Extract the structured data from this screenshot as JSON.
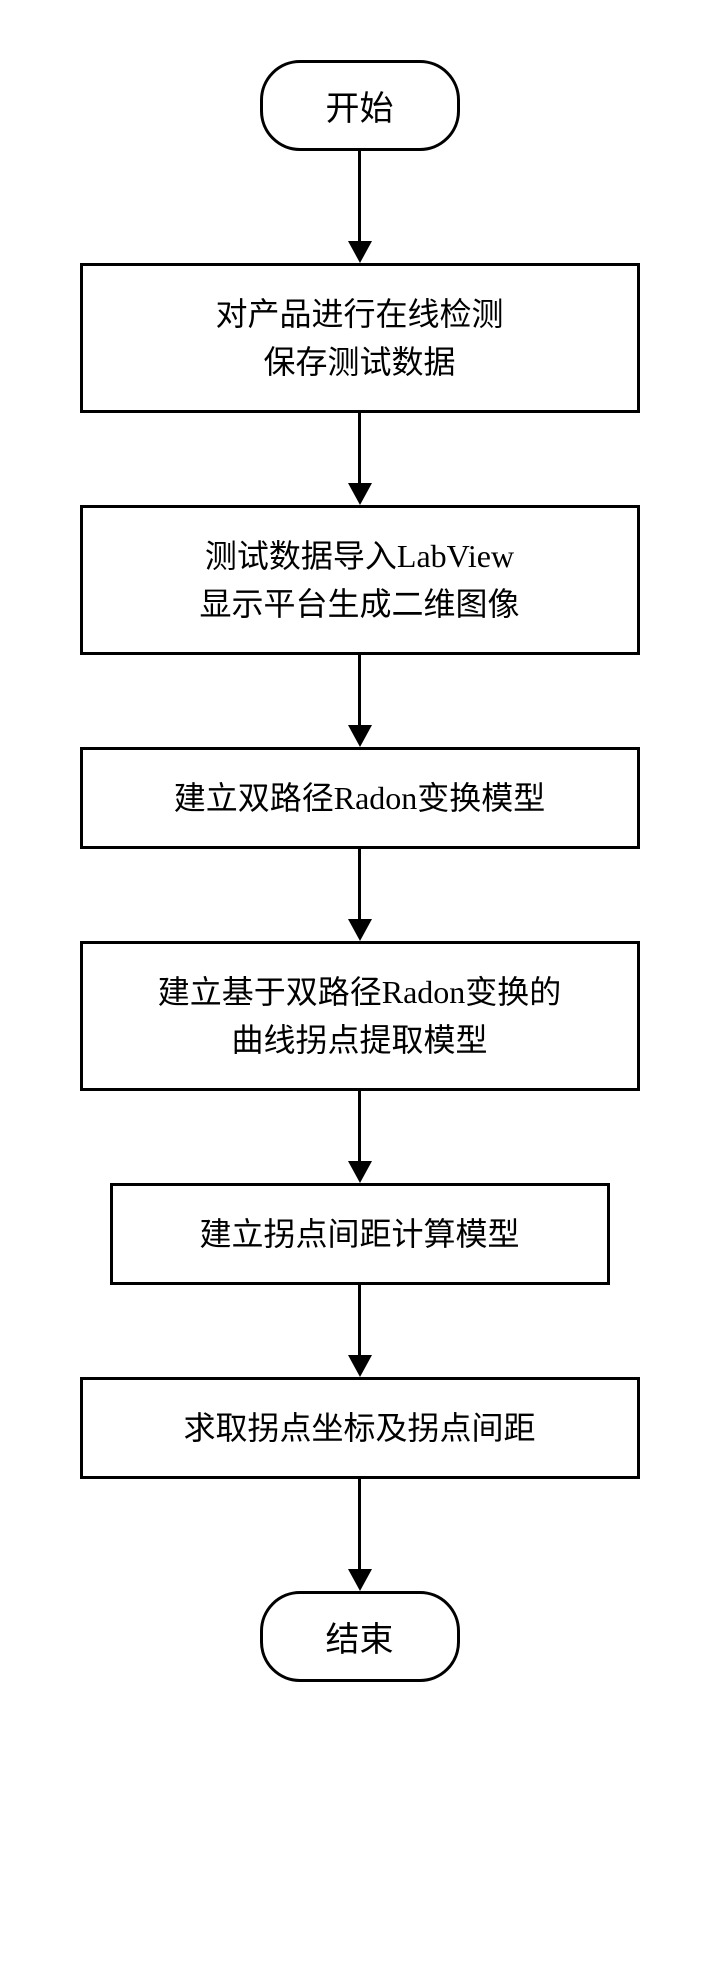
{
  "flowchart": {
    "type": "flowchart",
    "direction": "top-to-bottom",
    "background_color": "#ffffff",
    "stroke_color": "#000000",
    "stroke_width": 3,
    "text_color": "#000000",
    "font_size": 32,
    "arrow": {
      "line_length_default": 70,
      "line_length_first": 90,
      "line_width": 3,
      "head_width": 24,
      "head_height": 22
    },
    "nodes": [
      {
        "id": "n1",
        "shape": "terminal",
        "label": "开始"
      },
      {
        "id": "n2",
        "shape": "process",
        "label": "对产品进行在线检测\n保存测试数据"
      },
      {
        "id": "n3",
        "shape": "process",
        "label": "测试数据导入LabView\n显示平台生成二维图像"
      },
      {
        "id": "n4",
        "shape": "process",
        "label": "建立双路径Radon变换模型"
      },
      {
        "id": "n5",
        "shape": "process",
        "label": "建立基于双路径Radon变换的\n曲线拐点提取模型"
      },
      {
        "id": "n6",
        "shape": "process",
        "label": "建立拐点间距计算模型"
      },
      {
        "id": "n7",
        "shape": "process",
        "label": "求取拐点坐标及拐点间距"
      },
      {
        "id": "n8",
        "shape": "terminal",
        "label": "结束"
      }
    ],
    "edges": [
      {
        "from": "n1",
        "to": "n2"
      },
      {
        "from": "n2",
        "to": "n3"
      },
      {
        "from": "n3",
        "to": "n4"
      },
      {
        "from": "n4",
        "to": "n5"
      },
      {
        "from": "n5",
        "to": "n6"
      },
      {
        "from": "n6",
        "to": "n7"
      },
      {
        "from": "n7",
        "to": "n8"
      }
    ]
  }
}
